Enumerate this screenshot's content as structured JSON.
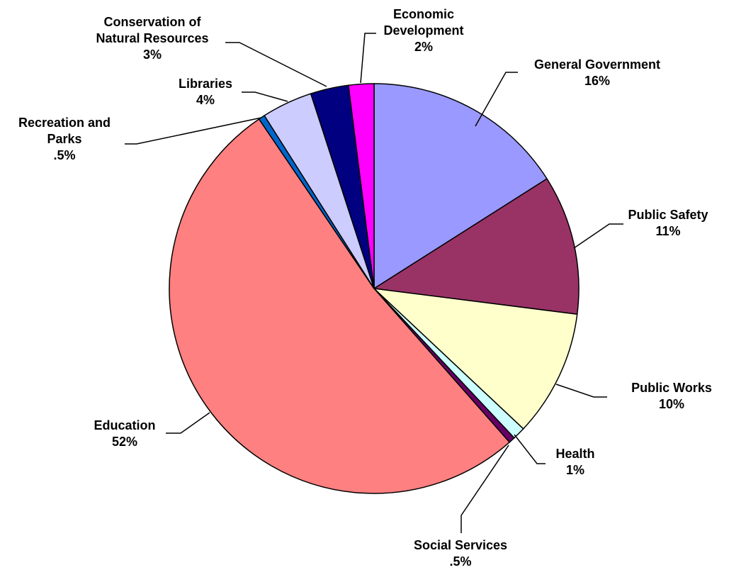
{
  "chart_data": {
    "type": "pie",
    "start_angle_deg": 0,
    "direction": "clockwise",
    "slices": [
      {
        "label_lines": [
          "General Government"
        ],
        "value_label": "16%",
        "value": 16.0,
        "color": "#9999FF"
      },
      {
        "label_lines": [
          "Public Safety"
        ],
        "value_label": "11%",
        "value": 11.0,
        "color": "#993366"
      },
      {
        "label_lines": [
          "Public Works"
        ],
        "value_label": "10%",
        "value": 10.0,
        "color": "#FFFFCC"
      },
      {
        "label_lines": [
          "Health"
        ],
        "value_label": "1%",
        "value": 1.0,
        "color": "#CCFFFF"
      },
      {
        "label_lines": [
          "Social Services"
        ],
        "value_label": ".5%",
        "value": 0.5,
        "color": "#660066"
      },
      {
        "label_lines": [
          "Education"
        ],
        "value_label": "52%",
        "value": 52.0,
        "color": "#FF8080"
      },
      {
        "label_lines": [
          "Recreation and",
          "Parks"
        ],
        "value_label": ".5%",
        "value": 0.5,
        "color": "#0066CC"
      },
      {
        "label_lines": [
          "Libraries"
        ],
        "value_label": "4%",
        "value": 4.0,
        "color": "#CCCCFF"
      },
      {
        "label_lines": [
          "Conservation of",
          "Natural Resources"
        ],
        "value_label": "3%",
        "value": 3.0,
        "color": "#000080"
      },
      {
        "label_lines": [
          "Economic",
          "Development"
        ],
        "value_label": "2%",
        "value": 2.0,
        "color": "#FF00FF"
      }
    ]
  }
}
